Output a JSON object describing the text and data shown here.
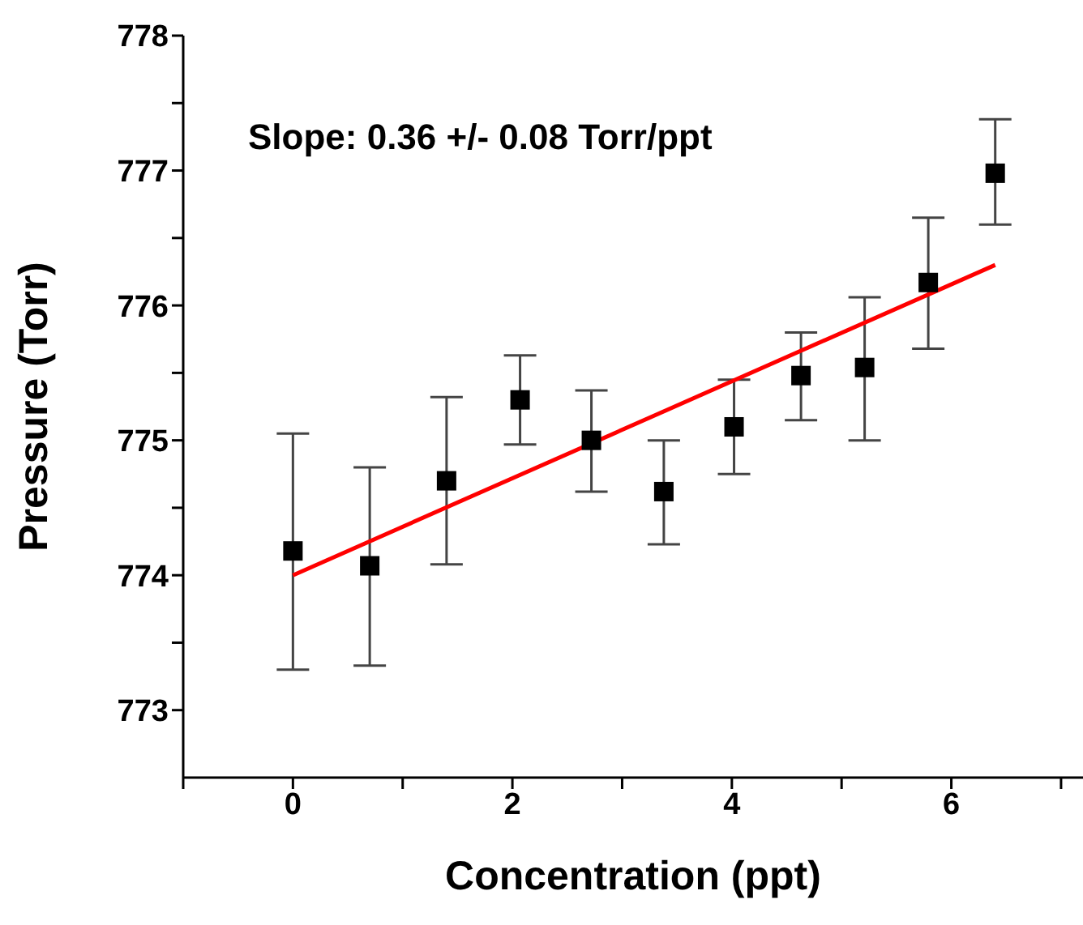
{
  "chart_data": {
    "type": "scatter",
    "xlabel": "Concentration (ppt)",
    "ylabel": "Pressure (Torr)",
    "annotations": [
      "Slope: 0.36 +/- 0.08 Torr/ppt"
    ],
    "xlim": [
      -1,
      7.2
    ],
    "xticks": [
      {
        "value": -1,
        "label": null
      },
      0,
      {
        "value": 1,
        "label": null
      },
      2,
      {
        "value": 3,
        "label": null
      },
      4,
      {
        "value": 5,
        "label": null
      },
      6,
      {
        "value": 7,
        "label": null
      }
    ],
    "ylim": [
      772.5,
      778
    ],
    "yticks": [
      773,
      {
        "value": 773.5,
        "label": null
      },
      774,
      {
        "value": 774.5,
        "label": null
      },
      775,
      {
        "value": 775.5,
        "label": null
      },
      776,
      {
        "value": 776.5,
        "label": null
      },
      777,
      {
        "value": 777.5,
        "label": null
      },
      778
    ],
    "grid": false,
    "legend": false,
    "series": [
      {
        "color": "#000000",
        "marker": "square",
        "x": [
          0,
          0.7,
          1.4,
          2.07,
          2.72,
          3.38,
          4.02,
          4.63,
          5.21,
          5.79,
          6.4
        ],
        "values": [
          774.18,
          774.07,
          774.7,
          775.3,
          775.0,
          774.62,
          775.1,
          775.48,
          775.54,
          776.17,
          776.98
        ],
        "errors": [
          [
            773.3,
            775.05
          ],
          [
            773.33,
            774.8
          ],
          [
            774.08,
            775.32
          ],
          [
            774.97,
            775.63
          ],
          [
            774.62,
            775.37
          ],
          [
            774.23,
            775.0
          ],
          [
            774.75,
            775.45
          ],
          [
            775.15,
            775.8
          ],
          [
            775.0,
            776.06
          ],
          [
            775.68,
            776.65
          ],
          [
            776.6,
            777.38
          ]
        ]
      },
      {
        "type": "line",
        "color": "#ff0000",
        "marker": "none",
        "line_style": "solid",
        "x": [
          0,
          6.4
        ],
        "values": [
          774.0,
          776.3
        ]
      }
    ]
  }
}
